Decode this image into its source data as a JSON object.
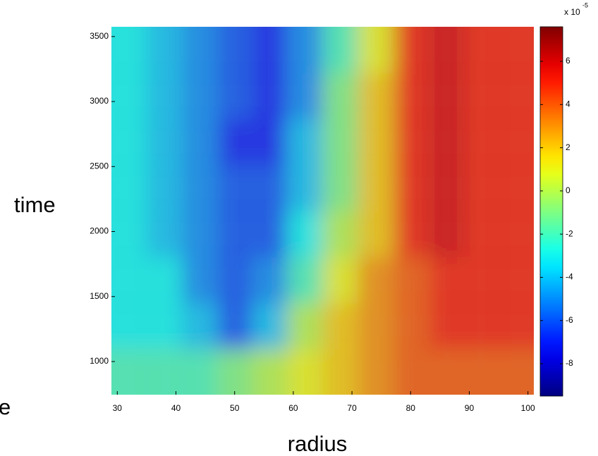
{
  "chart_data": {
    "type": "heatmap",
    "xlabel": "radius",
    "ylabel": "time",
    "cut_label": "e",
    "x": [
      32,
      38,
      44,
      50,
      56,
      62,
      68,
      74,
      80,
      86,
      92,
      98
    ],
    "y": [
      922,
      1276,
      1630,
      1984,
      2338,
      2692,
      3046,
      3400
    ],
    "z": [
      [
        -2,
        -2,
        -2,
        -1,
        0,
        1,
        2,
        3,
        4,
        4,
        4,
        4
      ],
      [
        -3,
        -3,
        -4,
        -6,
        -4,
        0,
        2,
        3,
        4,
        5,
        5,
        5
      ],
      [
        -3,
        -3,
        -5,
        -6,
        -5,
        -2,
        1,
        3,
        4,
        5,
        5,
        5
      ],
      [
        -3,
        -4,
        -5,
        -6,
        -6,
        -3,
        0,
        2,
        5,
        6,
        5,
        5
      ],
      [
        -3,
        -4,
        -5,
        -6,
        -6,
        -4,
        -1,
        2,
        5,
        6,
        5,
        5
      ],
      [
        -3,
        -4,
        -5,
        -7,
        -7,
        -4,
        -1,
        2,
        5,
        6,
        5,
        5
      ],
      [
        -3,
        -4,
        -5,
        -6,
        -7,
        -5,
        -1,
        2,
        5,
        6,
        5,
        5
      ],
      [
        -3,
        -4,
        -5,
        -6,
        -7,
        -5,
        -2,
        1,
        5,
        6,
        5,
        5
      ]
    ],
    "xlim": [
      29,
      101
    ],
    "xticks": [
      30,
      40,
      50,
      60,
      70,
      80,
      90,
      100
    ],
    "ylim": [
      745,
      3575
    ],
    "yticks": [
      1000,
      1500,
      2000,
      2500,
      3000,
      3500
    ],
    "clim": [
      -9.5,
      7.6
    ],
    "cticks": [
      -8,
      -6,
      -4,
      -2,
      0,
      2,
      4,
      6
    ],
    "colorbar_label": "x 10",
    "colorbar_exponent": "-5",
    "colormap": "jet"
  }
}
